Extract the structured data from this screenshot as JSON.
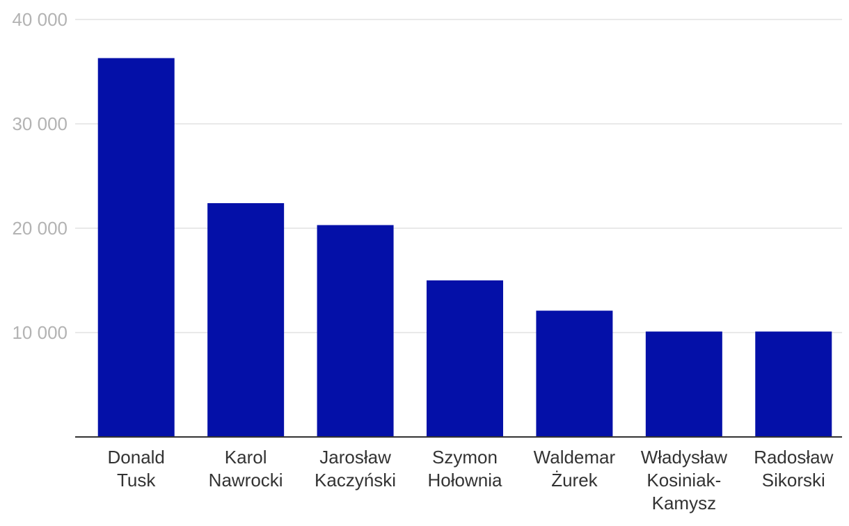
{
  "chart_data": {
    "type": "bar",
    "categories": [
      [
        "Donald",
        "Tusk"
      ],
      [
        "Karol",
        "Nawrocki"
      ],
      [
        "Jarosław",
        "Kaczyński"
      ],
      [
        "Szymon",
        "Hołownia"
      ],
      [
        "Waldemar",
        "Żurek"
      ],
      [
        "Władysław",
        "Kosiniak-",
        "Kamysz"
      ],
      [
        "Radosław",
        "Sikorski"
      ]
    ],
    "values": [
      36300,
      22400,
      20300,
      15000,
      12100,
      10100,
      10100
    ],
    "ylim": [
      0,
      40000
    ],
    "yticks": [
      10000,
      20000,
      30000,
      40000
    ],
    "ytick_labels": [
      "10 000",
      "20 000",
      "30 000",
      "40 000"
    ],
    "bar_color": "#0410a8",
    "grid": true,
    "title": "",
    "xlabel": "",
    "ylabel": ""
  }
}
